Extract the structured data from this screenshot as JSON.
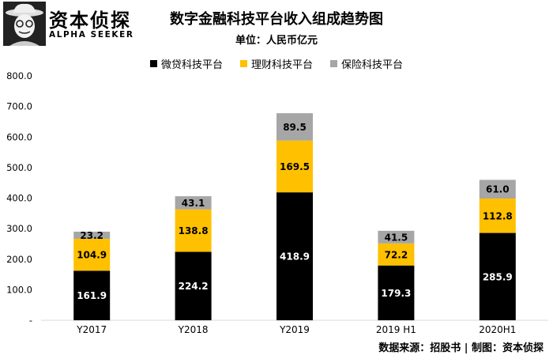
{
  "logo": {
    "name_cn": "资本侦探",
    "name_en": "ALPHA SEEKER"
  },
  "chart_data": {
    "type": "bar",
    "stacked": true,
    "title": "数字金融科技平台收入组成趋势图",
    "subtitle": "单位：人民币亿元",
    "categories": [
      "Y2017",
      "Y2018",
      "Y2019",
      "2019 H1",
      "2020H1"
    ],
    "series": [
      {
        "name": "微贷科技平台",
        "color": "#000000",
        "label_color": "#ffffff",
        "values": [
          161.9,
          224.2,
          418.9,
          179.3,
          285.9
        ]
      },
      {
        "name": "理财科技平台",
        "color": "#ffc000",
        "label_color": "#000000",
        "values": [
          104.9,
          138.8,
          169.5,
          72.2,
          112.8
        ]
      },
      {
        "name": "保险科技平台",
        "color": "#a6a6a6",
        "label_color": "#000000",
        "values": [
          23.2,
          43.1,
          89.5,
          41.5,
          61.0
        ]
      }
    ],
    "ylim": [
      0,
      800
    ],
    "yticks": [
      {
        "value": 0,
        "label": "-"
      },
      {
        "value": 100,
        "label": "100.0"
      },
      {
        "value": 200,
        "label": "200.0"
      },
      {
        "value": 300,
        "label": "300.0"
      },
      {
        "value": 400,
        "label": "400.0"
      },
      {
        "value": 500,
        "label": "500.0"
      },
      {
        "value": 600,
        "label": "600.0"
      },
      {
        "value": 700,
        "label": "700.0"
      },
      {
        "value": 800,
        "label": "800.0"
      }
    ],
    "grid": false,
    "legend_position": "top"
  },
  "source": "数据来源：招股书 | 制图：资本侦探"
}
